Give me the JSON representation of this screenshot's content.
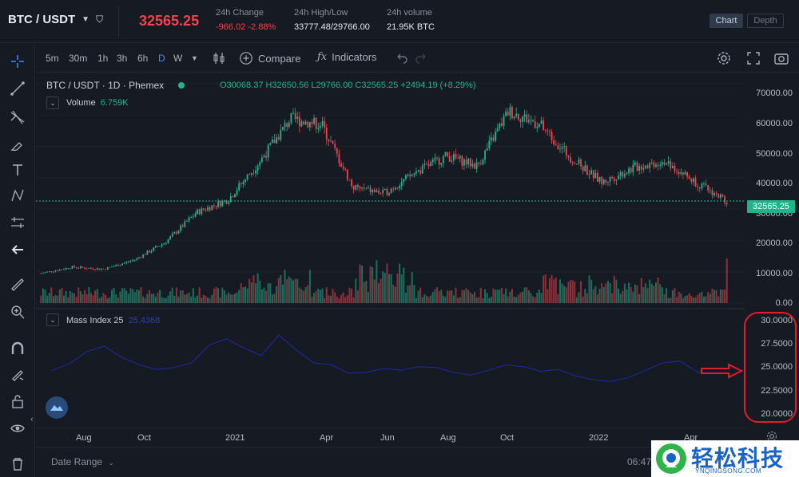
{
  "header": {
    "pair": "BTC / USDT",
    "last_price": "32565.25",
    "change_label": "24h Change",
    "change_value": "-966.02 -2.88%",
    "high_low_label": "24h High/Low",
    "high_low_value": "33777.48/29766.00",
    "volume_label": "24h volume",
    "volume_value": "21.95K BTC",
    "chart_button": "Chart",
    "depth_button": "Depth"
  },
  "toolbar": {
    "timeframes": [
      "5m",
      "30m",
      "1h",
      "3h",
      "6h",
      "D",
      "W"
    ],
    "active_timeframe": "D",
    "compare_label": "Compare",
    "indicators_label": "Indicators"
  },
  "legend": {
    "symbol": "BTC / USDT · 1D · Phemex",
    "ohlc": "O30068.37  H32650.56  L29766.00  C32565.25  +2494.19 (+8.29%)",
    "volume_label": "Volume",
    "volume_value": "6.759K",
    "mass_index_label": "Mass Index 25",
    "mass_index_value": "25.4368"
  },
  "price_tag": "32565.25",
  "price_axis_labels": [
    "70000.00",
    "60000.00",
    "50000.00",
    "40000.00",
    "30000.00",
    "20000.00",
    "10000.00",
    "0.00"
  ],
  "mass_axis_labels": [
    "30.0000",
    "27.5000",
    "25.0000",
    "22.5000",
    "20.0000"
  ],
  "time_labels": [
    "Aug",
    "Oct",
    "2021",
    "Apr",
    "Jun",
    "Aug",
    "Oct",
    "2022",
    "Apr"
  ],
  "bottom": {
    "date_range_label": "Date Range",
    "clock": "06:47"
  },
  "watermark": {
    "text": "轻松科技",
    "sub": "YNQINGSONG.COM"
  },
  "colors": {
    "up": "#22b38b",
    "down": "#f0434f",
    "mass_line": "#1f2aa8",
    "annotation": "#e11d2a"
  },
  "chart_data": [
    {
      "type": "candlestick",
      "title": "BTC / USDT · 1D · Phemex",
      "ylim": [
        0,
        72000
      ],
      "x": [
        "2020-07",
        "2020-08",
        "2020-09",
        "2020-10",
        "2020-11",
        "2020-12",
        "2021-01",
        "2021-02",
        "2021-03",
        "2021-04",
        "2021-05",
        "2021-06",
        "2021-07",
        "2021-08",
        "2021-09",
        "2021-10",
        "2021-11",
        "2021-12",
        "2022-01",
        "2022-02",
        "2022-03",
        "2022-04",
        "2022-05"
      ],
      "close": [
        9500,
        11500,
        10800,
        13800,
        19500,
        29000,
        33000,
        45000,
        58800,
        57000,
        37000,
        35000,
        41500,
        47000,
        43800,
        61300,
        57000,
        46300,
        38500,
        43200,
        45500,
        38500,
        32565
      ]
    },
    {
      "type": "bar",
      "title": "Volume",
      "values_note": "daily volume, peaks in early 2021 and May 2021"
    },
    {
      "type": "line",
      "title": "Mass Index 25",
      "ylim": [
        19,
        31
      ],
      "values": [
        24.8,
        25.5,
        26.8,
        27.4,
        26.2,
        25.4,
        24.9,
        25.1,
        25.6,
        27.5,
        28.2,
        27.2,
        26.4,
        28.6,
        27.0,
        25.6,
        25.4,
        24.5,
        24.6,
        25.0,
        24.8,
        25.2,
        25.1,
        24.6,
        24.3,
        24.8,
        25.4,
        25.2,
        24.7,
        24.9,
        24.2,
        23.8,
        23.6,
        24.0,
        24.8,
        25.6,
        25.8,
        24.6,
        24.4
      ]
    }
  ]
}
